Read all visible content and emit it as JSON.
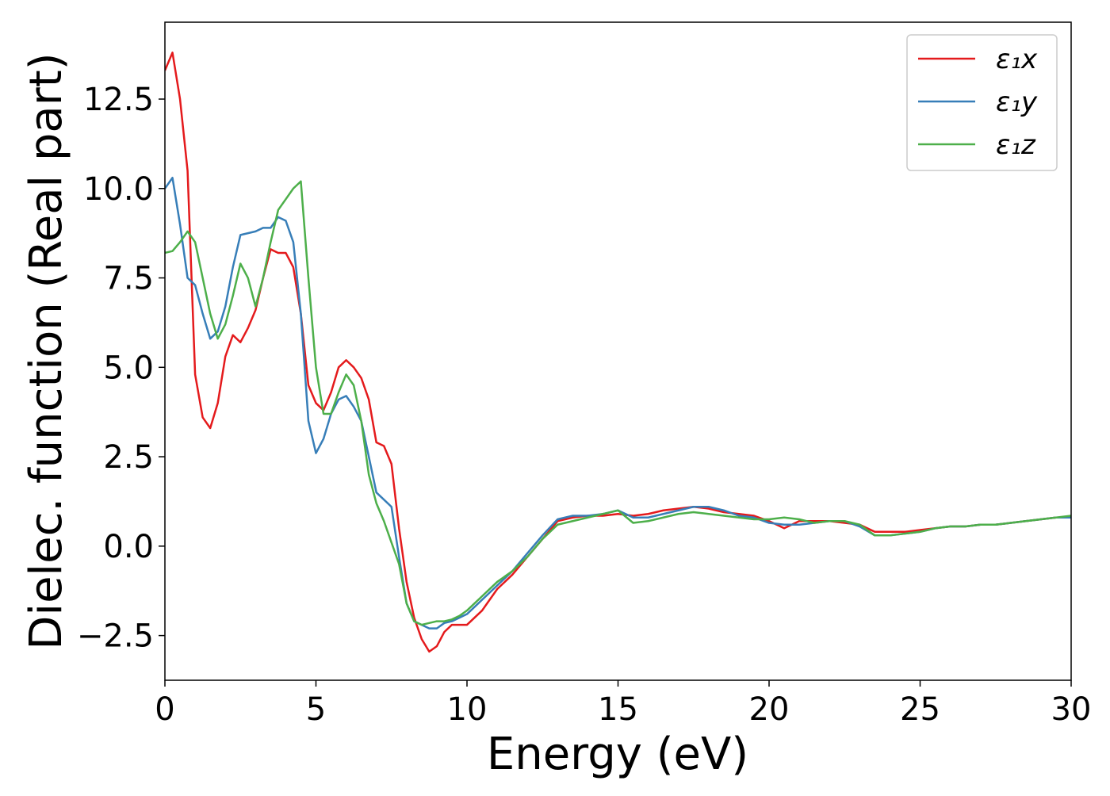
{
  "chart_data": {
    "type": "line",
    "xlabel": "Energy (eV)",
    "ylabel": "Dielec. function (Real part)",
    "x": [
      0,
      0.25,
      0.5,
      0.75,
      1,
      1.25,
      1.5,
      1.75,
      2,
      2.25,
      2.5,
      2.75,
      3,
      3.25,
      3.5,
      3.75,
      4,
      4.25,
      4.5,
      4.75,
      5,
      5.25,
      5.5,
      5.75,
      6,
      6.25,
      6.5,
      6.75,
      7,
      7.25,
      7.5,
      7.75,
      8,
      8.25,
      8.5,
      8.75,
      9,
      9.25,
      9.5,
      9.75,
      10,
      10.5,
      11,
      11.5,
      12,
      12.5,
      13,
      13.5,
      14,
      14.5,
      15,
      15.5,
      16,
      16.5,
      17,
      17.5,
      18,
      18.5,
      19,
      19.5,
      20,
      20.5,
      21,
      21.5,
      22,
      22.5,
      23,
      23.5,
      24,
      24.5,
      25,
      25.5,
      26,
      26.5,
      27,
      27.5,
      28,
      28.5,
      29,
      29.5,
      30
    ],
    "series": [
      {
        "name": "ε₁x",
        "color": "#e41a1c",
        "values": [
          13.3,
          13.8,
          12.5,
          10.5,
          4.8,
          3.6,
          3.3,
          4.0,
          5.3,
          5.9,
          5.7,
          6.1,
          6.6,
          7.5,
          8.3,
          8.2,
          8.2,
          7.8,
          6.5,
          4.5,
          4.0,
          3.8,
          4.3,
          5.0,
          5.2,
          5.0,
          4.7,
          4.1,
          2.9,
          2.8,
          2.3,
          0.5,
          -1.0,
          -2.0,
          -2.6,
          -2.95,
          -2.8,
          -2.4,
          -2.2,
          -2.2,
          -2.2,
          -1.8,
          -1.2,
          -0.8,
          -0.3,
          0.2,
          0.7,
          0.8,
          0.85,
          0.85,
          0.9,
          0.85,
          0.9,
          1.0,
          1.05,
          1.1,
          1.05,
          0.95,
          0.9,
          0.85,
          0.7,
          0.5,
          0.7,
          0.7,
          0.7,
          0.65,
          0.6,
          0.4,
          0.4,
          0.4,
          0.45,
          0.5,
          0.55,
          0.55,
          0.6,
          0.6,
          0.65,
          0.7,
          0.75,
          0.8,
          0.8
        ]
      },
      {
        "name": "ε₁y",
        "color": "#377eb8",
        "values": [
          10.0,
          10.3,
          9.0,
          7.5,
          7.3,
          6.5,
          5.8,
          6.0,
          6.7,
          7.8,
          8.7,
          8.75,
          8.8,
          8.9,
          8.9,
          9.2,
          9.1,
          8.5,
          6.5,
          3.5,
          2.6,
          3.0,
          3.7,
          4.1,
          4.2,
          3.9,
          3.5,
          2.5,
          1.5,
          1.3,
          1.1,
          -0.3,
          -1.6,
          -2.1,
          -2.2,
          -2.3,
          -2.3,
          -2.15,
          -2.1,
          -2.0,
          -1.9,
          -1.5,
          -1.1,
          -0.7,
          -0.2,
          0.3,
          0.75,
          0.85,
          0.85,
          0.9,
          1.0,
          0.8,
          0.8,
          0.9,
          1.0,
          1.1,
          1.1,
          1.0,
          0.85,
          0.8,
          0.65,
          0.6,
          0.6,
          0.65,
          0.7,
          0.7,
          0.55,
          0.3,
          0.3,
          0.35,
          0.4,
          0.5,
          0.55,
          0.55,
          0.6,
          0.6,
          0.65,
          0.7,
          0.75,
          0.8,
          0.8
        ]
      },
      {
        "name": "ε₁z",
        "color": "#4daf4a",
        "values": [
          8.2,
          8.25,
          8.5,
          8.8,
          8.5,
          7.5,
          6.5,
          5.8,
          6.2,
          7.0,
          7.9,
          7.5,
          6.7,
          7.5,
          8.5,
          9.4,
          9.7,
          10.0,
          10.2,
          7.5,
          5.0,
          3.7,
          3.7,
          4.3,
          4.8,
          4.5,
          3.5,
          2.0,
          1.2,
          0.7,
          0.1,
          -0.5,
          -1.6,
          -2.1,
          -2.2,
          -2.15,
          -2.1,
          -2.1,
          -2.05,
          -1.95,
          -1.8,
          -1.4,
          -1.0,
          -0.7,
          -0.3,
          0.2,
          0.6,
          0.7,
          0.8,
          0.9,
          1.0,
          0.65,
          0.7,
          0.8,
          0.9,
          0.95,
          0.9,
          0.85,
          0.8,
          0.75,
          0.75,
          0.8,
          0.75,
          0.65,
          0.7,
          0.7,
          0.6,
          0.3,
          0.3,
          0.35,
          0.4,
          0.5,
          0.55,
          0.55,
          0.6,
          0.6,
          0.65,
          0.7,
          0.75,
          0.8,
          0.85
        ]
      }
    ],
    "xlim": [
      0,
      30
    ],
    "xticks": [
      0,
      5,
      10,
      15,
      20,
      25,
      30
    ],
    "ylim": [
      -3.75,
      14.65
    ],
    "yticks": [
      {
        "value": -2.5,
        "label": "−2.5"
      },
      {
        "value": 0,
        "label": "0.0"
      },
      2.5,
      {
        "value": 5,
        "label": "5.0"
      },
      7.5,
      {
        "value": 10,
        "label": "10.0"
      },
      12.5
    ],
    "legend": "upper right",
    "grid": false
  }
}
